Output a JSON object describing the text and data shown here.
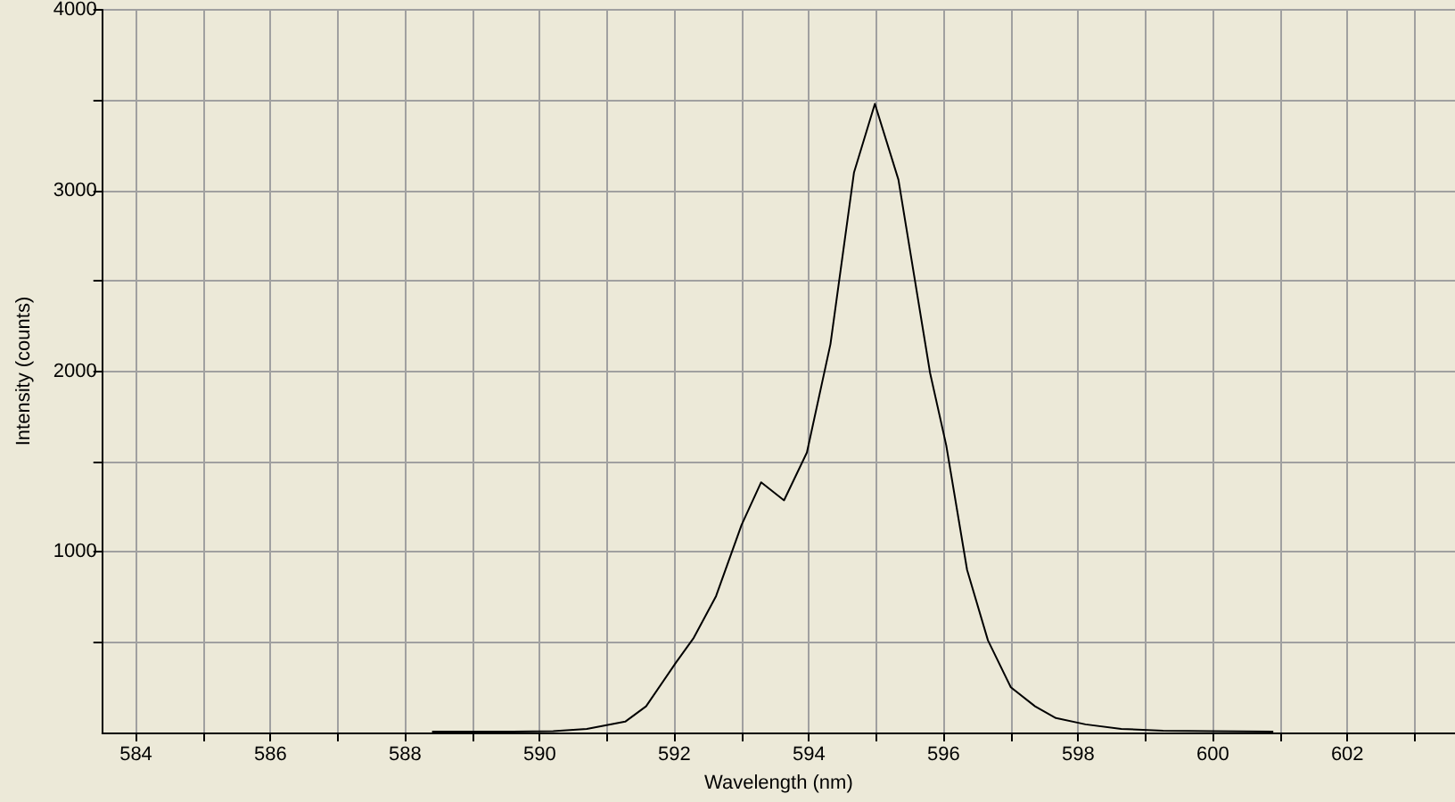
{
  "chart_data": {
    "type": "line",
    "xlabel": "Wavelength (nm)",
    "ylabel": "Intensity (counts)",
    "x": [
      588.4,
      589.0,
      589.6,
      590.2,
      590.7,
      591.27,
      591.58,
      592.03,
      592.29,
      592.62,
      593.0,
      593.29,
      593.63,
      593.97,
      594.32,
      594.67,
      594.98,
      595.33,
      595.8,
      596.04,
      596.35,
      596.66,
      597.0,
      597.36,
      597.67,
      598.11,
      598.64,
      599.26,
      600.0,
      600.9
    ],
    "series": [
      {
        "color": "#000000",
        "values": [
          5,
          5,
          5,
          8,
          20,
          60,
          145,
          390,
          525,
          755,
          1150,
          1385,
          1285,
          1550,
          2150,
          3100,
          3480,
          3060,
          1990,
          1590,
          900,
          510,
          250,
          145,
          80,
          45,
          20,
          10,
          7,
          5
        ]
      }
    ],
    "xlim": [
      583.5,
      603.6
    ],
    "ylim": [
      0,
      4000
    ],
    "xticks": [
      584,
      {
        "value": 585,
        "label": null
      },
      586,
      {
        "value": 587,
        "label": null
      },
      588,
      {
        "value": 589,
        "label": null
      },
      590,
      {
        "value": 591,
        "label": null
      },
      592,
      {
        "value": 593,
        "label": null
      },
      594,
      {
        "value": 595,
        "label": null
      },
      596,
      {
        "value": 597,
        "label": null
      },
      598,
      {
        "value": 599,
        "label": null
      },
      600,
      {
        "value": 601,
        "label": null
      },
      602,
      {
        "value": 603,
        "label": null
      }
    ],
    "yticks": [
      {
        "value": 500,
        "label": null
      },
      1000,
      {
        "value": 1500,
        "label": null
      },
      2000,
      {
        "value": 2500,
        "label": null
      },
      3000,
      {
        "value": 3500,
        "label": null
      },
      4000
    ],
    "grid": true,
    "marker": "none",
    "line_style": "solid"
  }
}
